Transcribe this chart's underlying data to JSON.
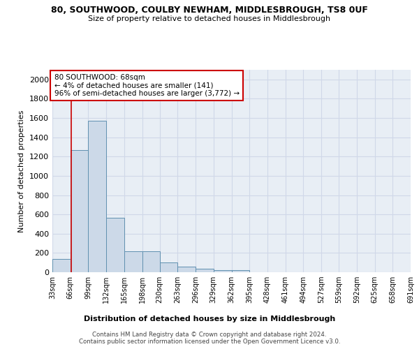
{
  "title_line1": "80, SOUTHWOOD, COULBY NEWHAM, MIDDLESBROUGH, TS8 0UF",
  "title_line2": "Size of property relative to detached houses in Middlesbrough",
  "xlabel": "Distribution of detached houses by size in Middlesbrough",
  "ylabel": "Number of detached properties",
  "footer_line1": "Contains HM Land Registry data © Crown copyright and database right 2024.",
  "footer_line2": "Contains public sector information licensed under the Open Government Licence v3.0.",
  "annotation_title": "80 SOUTHWOOD: 68sqm",
  "annotation_line2": "← 4% of detached houses are smaller (141)",
  "annotation_line3": "96% of semi-detached houses are larger (3,772) →",
  "property_size": 68,
  "bar_color": "#ccd9e8",
  "bar_edge_color": "#6090b0",
  "grid_color": "#d0d8e8",
  "background_color": "#e8eef5",
  "vline_color": "#cc0000",
  "annotation_box_color": "#ffffff",
  "annotation_box_edge": "#cc0000",
  "bin_edges": [
    33,
    66,
    99,
    132,
    165,
    198,
    230,
    263,
    296,
    329,
    362,
    395,
    428,
    461,
    494,
    527,
    559,
    592,
    625,
    658,
    691
  ],
  "bar_heights": [
    140,
    1270,
    1575,
    565,
    215,
    215,
    100,
    55,
    35,
    25,
    25,
    0,
    0,
    0,
    0,
    0,
    0,
    0,
    0,
    0
  ],
  "ylim": [
    0,
    2100
  ],
  "yticks": [
    0,
    200,
    400,
    600,
    800,
    1000,
    1200,
    1400,
    1600,
    1800,
    2000
  ]
}
